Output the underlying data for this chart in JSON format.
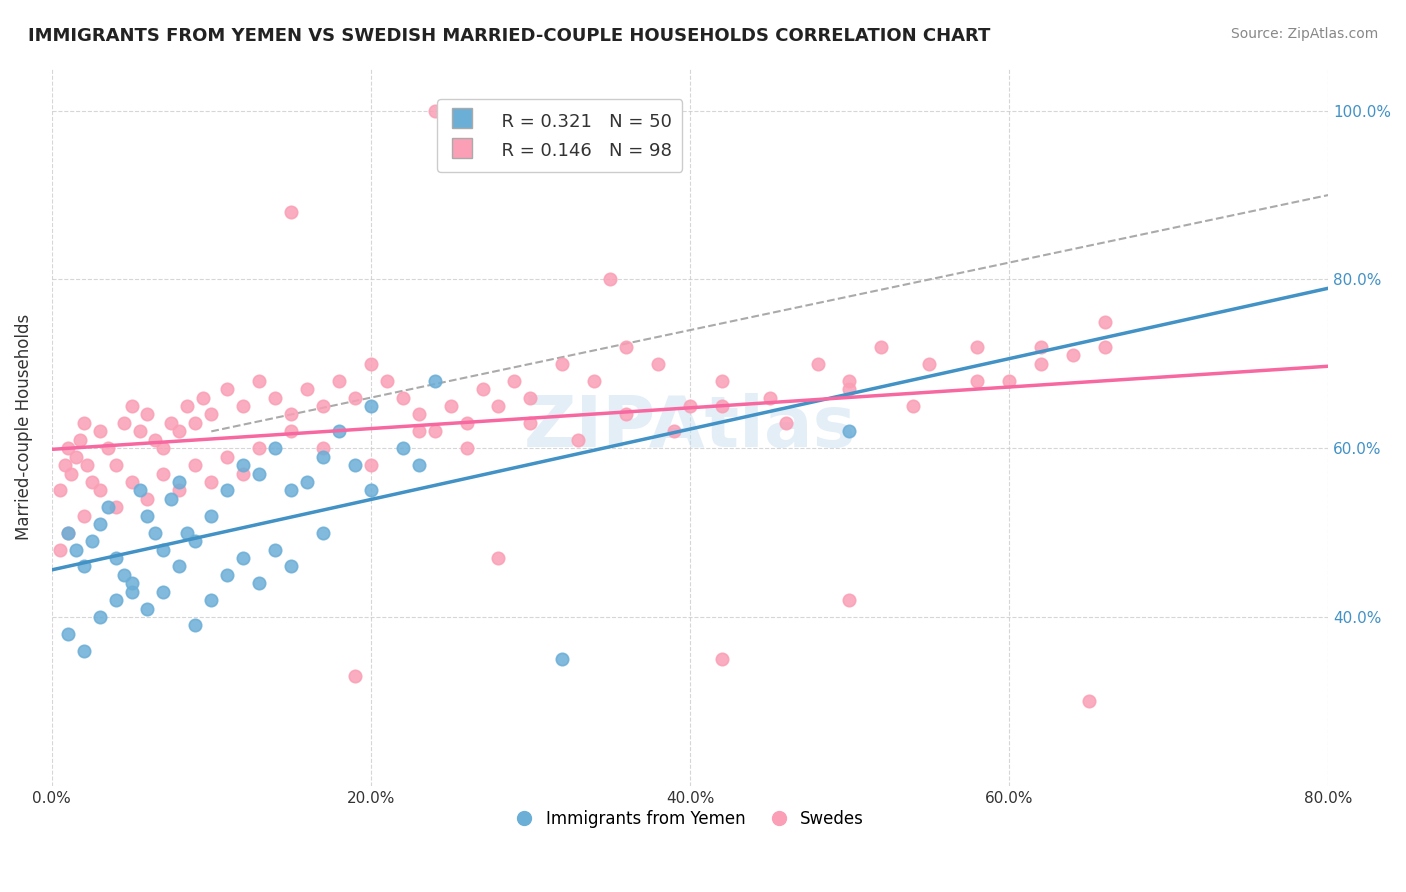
{
  "title": "IMMIGRANTS FROM YEMEN VS SWEDISH MARRIED-COUPLE HOUSEHOLDS CORRELATION CHART",
  "source": "Source: ZipAtlas.com",
  "xlabel_bottom": "",
  "ylabel": "Married-couple Households",
  "legend_labels": [
    "Immigrants from Yemen",
    "Swedes"
  ],
  "legend_R": [
    "R = 0.321",
    "R = 0.146"
  ],
  "legend_N": [
    "N = 50",
    "N = 98"
  ],
  "xlim": [
    0.0,
    0.8
  ],
  "ylim": [
    0.2,
    1.05
  ],
  "ytick_labels": [
    "40.0%",
    "60.0%",
    "80.0%",
    "100.0%"
  ],
  "ytick_values": [
    0.4,
    0.6,
    0.8,
    1.0
  ],
  "xtick_labels": [
    "0.0%",
    "20.0%",
    "40.0%",
    "60.0%",
    "80.0%"
  ],
  "xtick_values": [
    0.0,
    0.2,
    0.4,
    0.6,
    0.8
  ],
  "color_blue": "#6baed6",
  "color_pink": "#fa9fb5",
  "line_blue": "#4292c6",
  "line_pink": "#f768a1",
  "line_dashed": "#aaaaaa",
  "watermark": "ZIPAtlas",
  "blue_scatter_x": [
    0.01,
    0.015,
    0.02,
    0.025,
    0.03,
    0.035,
    0.04,
    0.045,
    0.05,
    0.055,
    0.06,
    0.065,
    0.07,
    0.075,
    0.08,
    0.085,
    0.09,
    0.1,
    0.11,
    0.12,
    0.13,
    0.14,
    0.15,
    0.16,
    0.17,
    0.18,
    0.19,
    0.2,
    0.22,
    0.24,
    0.01,
    0.02,
    0.03,
    0.04,
    0.05,
    0.06,
    0.07,
    0.08,
    0.09,
    0.1,
    0.11,
    0.12,
    0.13,
    0.14,
    0.15,
    0.17,
    0.2,
    0.23,
    0.32,
    0.5
  ],
  "blue_scatter_y": [
    0.5,
    0.48,
    0.46,
    0.49,
    0.51,
    0.53,
    0.47,
    0.45,
    0.43,
    0.55,
    0.52,
    0.5,
    0.48,
    0.54,
    0.56,
    0.5,
    0.49,
    0.52,
    0.55,
    0.58,
    0.57,
    0.6,
    0.55,
    0.56,
    0.59,
    0.62,
    0.58,
    0.65,
    0.6,
    0.68,
    0.38,
    0.36,
    0.4,
    0.42,
    0.44,
    0.41,
    0.43,
    0.46,
    0.39,
    0.42,
    0.45,
    0.47,
    0.44,
    0.48,
    0.46,
    0.5,
    0.55,
    0.58,
    0.35,
    0.62
  ],
  "pink_scatter_x": [
    0.005,
    0.008,
    0.01,
    0.012,
    0.015,
    0.018,
    0.02,
    0.022,
    0.025,
    0.03,
    0.035,
    0.04,
    0.045,
    0.05,
    0.055,
    0.06,
    0.065,
    0.07,
    0.075,
    0.08,
    0.085,
    0.09,
    0.095,
    0.1,
    0.11,
    0.12,
    0.13,
    0.14,
    0.15,
    0.16,
    0.17,
    0.18,
    0.19,
    0.2,
    0.21,
    0.22,
    0.23,
    0.24,
    0.25,
    0.26,
    0.27,
    0.28,
    0.29,
    0.3,
    0.32,
    0.34,
    0.36,
    0.38,
    0.4,
    0.42,
    0.45,
    0.48,
    0.5,
    0.52,
    0.55,
    0.58,
    0.6,
    0.62,
    0.64,
    0.66,
    0.005,
    0.01,
    0.02,
    0.03,
    0.04,
    0.05,
    0.06,
    0.07,
    0.08,
    0.09,
    0.1,
    0.11,
    0.12,
    0.13,
    0.15,
    0.17,
    0.2,
    0.23,
    0.26,
    0.3,
    0.33,
    0.36,
    0.39,
    0.42,
    0.46,
    0.5,
    0.54,
    0.58,
    0.62,
    0.66,
    0.24,
    0.15,
    0.35,
    0.42,
    0.28,
    0.19,
    0.5,
    0.65
  ],
  "pink_scatter_y": [
    0.55,
    0.58,
    0.6,
    0.57,
    0.59,
    0.61,
    0.63,
    0.58,
    0.56,
    0.62,
    0.6,
    0.58,
    0.63,
    0.65,
    0.62,
    0.64,
    0.61,
    0.6,
    0.63,
    0.62,
    0.65,
    0.63,
    0.66,
    0.64,
    0.67,
    0.65,
    0.68,
    0.66,
    0.64,
    0.67,
    0.65,
    0.68,
    0.66,
    0.7,
    0.68,
    0.66,
    0.64,
    0.62,
    0.65,
    0.63,
    0.67,
    0.65,
    0.68,
    0.66,
    0.7,
    0.68,
    0.72,
    0.7,
    0.65,
    0.68,
    0.66,
    0.7,
    0.68,
    0.72,
    0.7,
    0.72,
    0.68,
    0.72,
    0.71,
    0.75,
    0.48,
    0.5,
    0.52,
    0.55,
    0.53,
    0.56,
    0.54,
    0.57,
    0.55,
    0.58,
    0.56,
    0.59,
    0.57,
    0.6,
    0.62,
    0.6,
    0.58,
    0.62,
    0.6,
    0.63,
    0.61,
    0.64,
    0.62,
    0.65,
    0.63,
    0.67,
    0.65,
    0.68,
    0.7,
    0.72,
    1.0,
    0.88,
    0.8,
    0.35,
    0.47,
    0.33,
    0.42,
    0.3
  ]
}
